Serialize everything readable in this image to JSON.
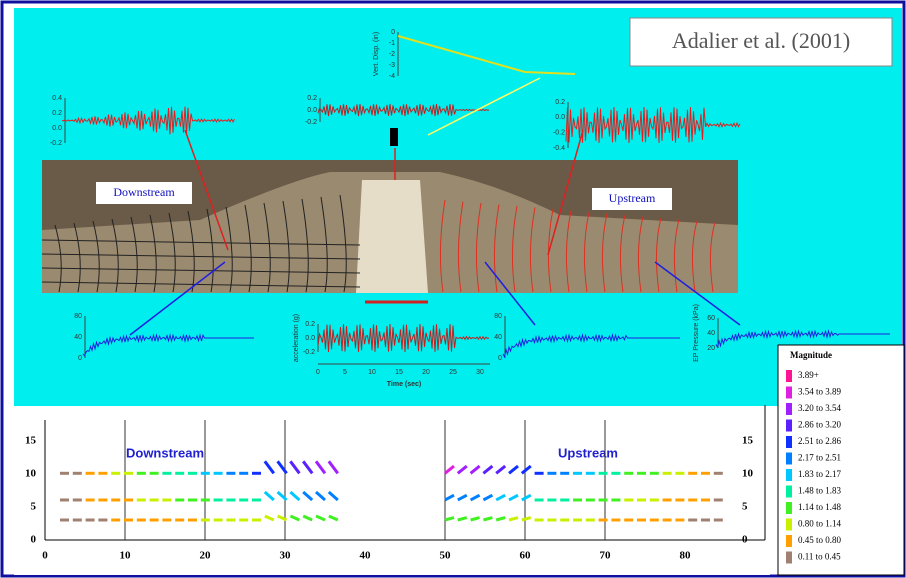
{
  "citation": "Adalier et al. (2001)",
  "photo": {
    "left_label": "Downstream",
    "right_label": "Upstream"
  },
  "records": {
    "top_left": {
      "yticks": [
        "0.4",
        "0.2",
        "0.0",
        "-0.2"
      ]
    },
    "top_center": {
      "yticks": [
        "0.2",
        "0.0",
        "-0.2"
      ]
    },
    "top_right": {
      "yticks": [
        "0.2",
        "0.0",
        "-0.2",
        "-0.4"
      ]
    },
    "vert_disp": {
      "ylabel": "Vert. Disp. (in)",
      "yticks": [
        "0",
        "-1",
        "-2",
        "-3",
        "-4"
      ]
    },
    "bottom_left": {
      "yticks": [
        "80",
        "40",
        "0"
      ]
    },
    "acceleration": {
      "ylabel": "acceleration (g)",
      "xlabel": "Time (sec)",
      "yticks": [
        "0.2",
        "0.0",
        "-0.2"
      ],
      "xticks": [
        "0",
        "5",
        "10",
        "15",
        "20",
        "25",
        "30"
      ]
    },
    "bottom_middle": {
      "yticks": [
        "80",
        "40",
        "0"
      ]
    },
    "bottom_right": {
      "ylabel": "EP Pressure (kPa)",
      "yticks": [
        "60",
        "40",
        "20"
      ]
    }
  },
  "vector_plot": {
    "left_label": "Downstream",
    "right_label": "Upstream",
    "xticks": [
      "0",
      "10",
      "20",
      "30",
      "40",
      "50",
      "60",
      "70",
      "80"
    ],
    "yticks": [
      "0",
      "5",
      "10",
      "15"
    ]
  },
  "legend": {
    "title": "Magnitude",
    "entries": [
      {
        "label": "3.89+",
        "color": "#ff1493"
      },
      {
        "label": "3.54 to 3.89",
        "color": "#e020e0"
      },
      {
        "label": "3.20 to 3.54",
        "color": "#a020ff"
      },
      {
        "label": "2.86 to 3.20",
        "color": "#5a20ff"
      },
      {
        "label": "2.51 to 2.86",
        "color": "#1030ff"
      },
      {
        "label": "2.17 to 2.51",
        "color": "#0080ff"
      },
      {
        "label": "1.83 to 2.17",
        "color": "#00c8ff"
      },
      {
        "label": "1.48 to 1.83",
        "color": "#00f0a0"
      },
      {
        "label": "1.14 to 1.48",
        "color": "#40f020"
      },
      {
        "label": "0.80 to 1.14",
        "color": "#c8f000"
      },
      {
        "label": "0.45 to 0.80",
        "color": "#ffa000"
      },
      {
        "label": "0.11 to 0.45",
        "color": "#a08070"
      }
    ]
  }
}
